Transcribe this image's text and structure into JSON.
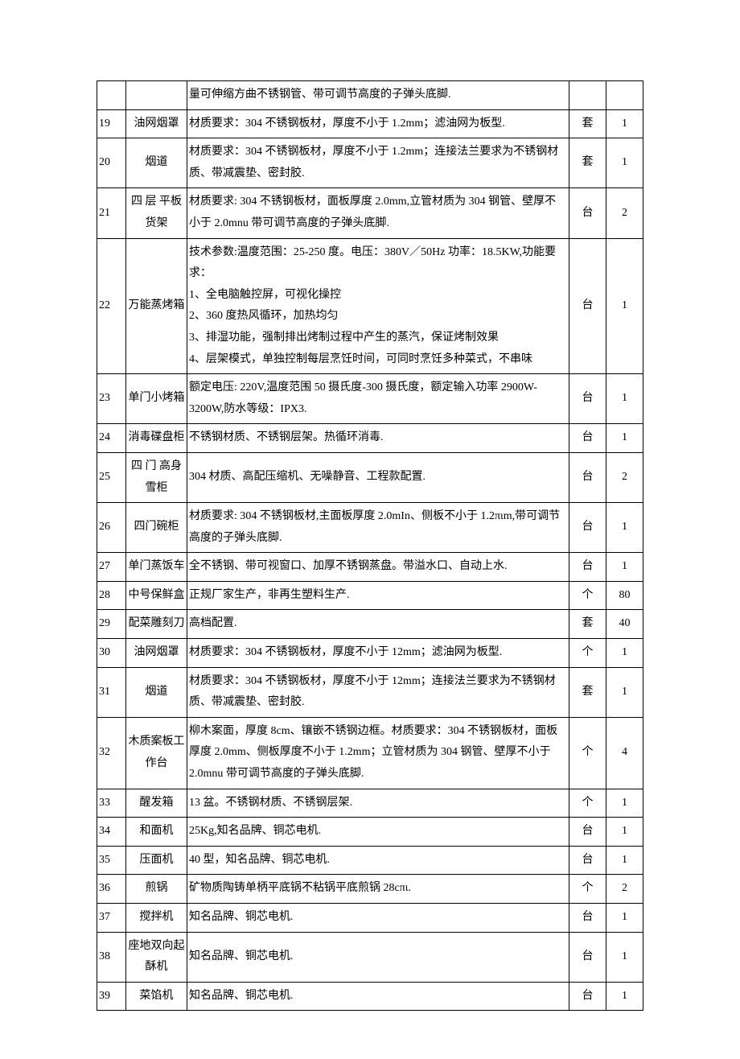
{
  "table": {
    "columns": {
      "no_width": 36,
      "name_width": 76,
      "unit_width": 46,
      "qty_width": 46
    },
    "border_color": "#000000",
    "text_color": "#000000",
    "background_color": "#ffffff",
    "font_size": 14,
    "line_height": 1.9,
    "rows": [
      {
        "no": "",
        "name": "",
        "spec": "量可伸缩方曲不锈钢管、带可调节高度的子弹头底脚.",
        "unit": "",
        "qty": "",
        "continuation": true
      },
      {
        "no": "19",
        "name": "油网烟罩",
        "spec": "材质要求：304 不锈钢板材，厚度不小于 1.2mm；滤油网为板型.",
        "unit": "套",
        "qty": "1"
      },
      {
        "no": "20",
        "name": "烟道",
        "spec": "材质要求：304 不锈钢板材，厚度不小于 1.2mm；连接法兰要求为不锈钢材质、带减震垫、密封胶.",
        "unit": "套",
        "qty": "1"
      },
      {
        "no": "21",
        "name": "四 层 平板货架",
        "name_justified": true,
        "spec": "材质要求: 304 不锈钢板材，面板厚度 2.0mm,立管材质为 304 钢管、壁厚不小于 2.0mnu 带可调节高度的子弹头底脚.",
        "unit": "台",
        "qty": "2"
      },
      {
        "no": "22",
        "name": "万能蒸烤箱",
        "spec": "技术参数:温度范围：25-250 度。电压：380V／50Hz 功率：18.5KW,功能要求：\n1、全电脑触控屏，可视化操控\n2、360 度热风循环，加热均匀\n3、排湿功能，强制排出烤制过程中产生的蒸汽，保证烤制效果\n4、层架模式，单独控制每层烹饪时间，可同时烹饪多种菜式，不串味",
        "unit": "台",
        "qty": "1"
      },
      {
        "no": "23",
        "name": "单门小烤箱",
        "spec": "额定电压: 220V,温度范围 50 摄氏度-300 摄氏度，额定输入功率 2900W-3200W,防水等级：IPX3.",
        "unit": "台",
        "qty": "1"
      },
      {
        "no": "24",
        "name": "消毒碟盘柜",
        "spec": "不锈钢材质、不锈钢层架。热循环消毒.",
        "unit": "台",
        "qty": "1"
      },
      {
        "no": "25",
        "name": "四 门 高身雪柜",
        "name_justified": true,
        "spec": "304 材质、高配压缩机、无噪静音、工程款配置.",
        "unit": "台",
        "qty": "2"
      },
      {
        "no": "26",
        "name": "四门碗柜",
        "spec": "材质要求: 304 不锈钢板材,主面板厚度 2.0mIn、侧板不小于 1.2πιm,带可调节高度的子弹头底脚.",
        "unit": "台",
        "qty": "1"
      },
      {
        "no": "27",
        "name": "单门蒸饭车",
        "spec": "全不锈钢、带可视窗口、加厚不锈钢蒸盘。带溢水口、自动上水.",
        "unit": "台",
        "qty": "1"
      },
      {
        "no": "28",
        "name": "中号保鲜盒",
        "spec": "正规厂家生产，非再生塑料生产.",
        "unit": "个",
        "qty": "80"
      },
      {
        "no": "29",
        "name": "配菜雕刻刀",
        "spec": "高档配置.",
        "unit": "套",
        "qty": "40"
      },
      {
        "no": "30",
        "name": "油网烟罩",
        "spec": "材质要求：304 不锈钢板材，厚度不小于 12mm；滤油网为板型.",
        "unit": "个",
        "qty": "1"
      },
      {
        "no": "31",
        "name": "烟道",
        "spec": "材质要求：304 不锈钢板材，厚度不小于 12mm；连接法兰要求为不锈钢材质、带减震垫、密封胶.",
        "unit": "套",
        "qty": "1"
      },
      {
        "no": "32",
        "name": "木质案板工作台",
        "spec": "柳木案面，厚度 8cm、镶嵌不锈钢边框。材质要求：304 不锈钢板材，面板厚度 2.0mm、侧板厚度不小于 1.2mm；立管材质为 304 钢管、壁厚不小于 2.0mnu 带可调节高度的子弹头底脚.",
        "unit": "个",
        "qty": "4"
      },
      {
        "no": "33",
        "name": "醒发箱",
        "spec": "13 盆。不锈钢材质、不锈钢层架.",
        "unit": "个",
        "qty": "1"
      },
      {
        "no": "34",
        "name": "和面机",
        "spec": "25Kg,知名品牌、铜芯电机.",
        "unit": "台",
        "qty": "1"
      },
      {
        "no": "35",
        "name": "压面机",
        "spec": "40 型，知名品牌、铜芯电机.",
        "unit": "台",
        "qty": "1"
      },
      {
        "no": "36",
        "name": "煎锅",
        "spec": "矿物质陶铸单柄平底锅不粘锅平底煎锅 28cπι.",
        "unit": "个",
        "qty": "2"
      },
      {
        "no": "37",
        "name": "搅拌机",
        "spec": "知名品牌、铜芯电机.",
        "unit": "台",
        "qty": "1"
      },
      {
        "no": "38",
        "name": "座地双向起酥机",
        "spec": "知名品牌、铜芯电机.",
        "unit": "台",
        "qty": "1"
      },
      {
        "no": "39",
        "name": "菜馅机",
        "spec": "知名品牌、铜芯电机.",
        "unit": "台",
        "qty": "1"
      }
    ]
  }
}
